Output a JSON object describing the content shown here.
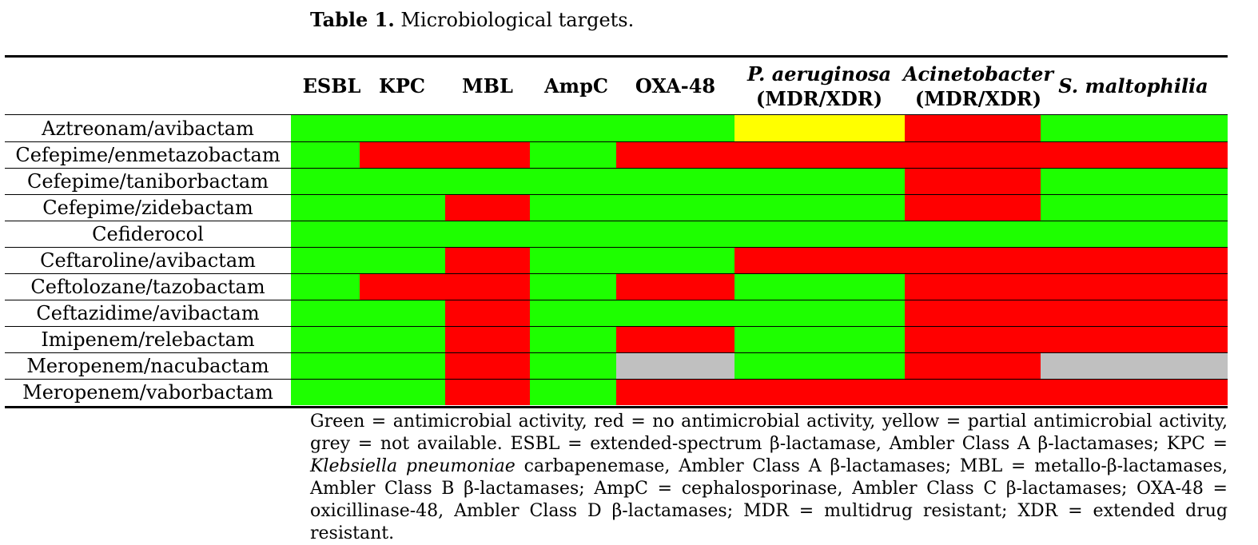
{
  "caption": {
    "label": "Table 1.",
    "text": " Microbiological targets."
  },
  "colors": {
    "green": "#1eff00",
    "red": "#ff0000",
    "yellow": "#ffff00",
    "grey": "#c0c0c0"
  },
  "columns": [
    {
      "line1": "ESBL",
      "line2": "",
      "italic": false
    },
    {
      "line1": "KPC",
      "line2": "",
      "italic": false
    },
    {
      "line1": "MBL",
      "line2": "",
      "italic": false
    },
    {
      "line1": "AmpC",
      "line2": "",
      "italic": false
    },
    {
      "line1": "OXA-48",
      "line2": "",
      "italic": false
    },
    {
      "line1": "P. aeruginosa",
      "line2": "(MDR/XDR)",
      "italic": true
    },
    {
      "line1": "Acinetobacter",
      "line2": "(MDR/XDR)",
      "italic": true
    },
    {
      "line1": "S. maltophilia",
      "line2": "",
      "italic": true
    }
  ],
  "rows": [
    {
      "drug": "Aztreonam/avibactam",
      "cells": [
        "green",
        "green",
        "green",
        "green",
        "green",
        "yellow",
        "red",
        "green"
      ]
    },
    {
      "drug": "Cefepime/enmetazobactam",
      "cells": [
        "green",
        "red",
        "red",
        "green",
        "red",
        "red",
        "red",
        "red"
      ]
    },
    {
      "drug": "Cefepime/taniborbactam",
      "cells": [
        "green",
        "green",
        "green",
        "green",
        "green",
        "green",
        "red",
        "green"
      ]
    },
    {
      "drug": "Cefepime/zidebactam",
      "cells": [
        "green",
        "green",
        "red",
        "green",
        "green",
        "green",
        "red",
        "green"
      ]
    },
    {
      "drug": "Cefiderocol",
      "cells": [
        "green",
        "green",
        "green",
        "green",
        "green",
        "green",
        "green",
        "green"
      ]
    },
    {
      "drug": "Ceftaroline/avibactam",
      "cells": [
        "green",
        "green",
        "red",
        "green",
        "green",
        "red",
        "red",
        "red"
      ]
    },
    {
      "drug": "Ceftolozane/tazobactam",
      "cells": [
        "green",
        "red",
        "red",
        "green",
        "red",
        "green",
        "red",
        "red"
      ]
    },
    {
      "drug": "Ceftazidime/avibactam",
      "cells": [
        "green",
        "green",
        "red",
        "green",
        "green",
        "green",
        "red",
        "red"
      ]
    },
    {
      "drug": "Imipenem/relebactam",
      "cells": [
        "green",
        "green",
        "red",
        "green",
        "red",
        "green",
        "red",
        "red"
      ]
    },
    {
      "drug": "Meropenem/nacubactam",
      "cells": [
        "green",
        "green",
        "red",
        "green",
        "grey",
        "green",
        "red",
        "grey"
      ]
    },
    {
      "drug": "Meropenem/vaborbactam",
      "cells": [
        "green",
        "green",
        "red",
        "green",
        "red",
        "red",
        "red",
        "red"
      ]
    }
  ],
  "footnote": {
    "part1": "Green = antimicrobial activity, red = no antimicrobial activity, yellow = partial antimicrobial activity, grey = not available. ESBL = extended-spectrum β-lactamase, Ambler Class A β-lactamases; KPC = ",
    "italic": "Klebsiella pneumoniae",
    "part2": " carbapenemase, Ambler Class A β-lactamases; MBL = metallo-β-lactamases, Ambler Class B β-lactamases; AmpC = cephalosporinase, Ambler Class C β-lactamases; OXA-48 = oxicillinase-48, Ambler Class D β-lactamases; MDR = multidrug resistant; XDR = extended drug resistant."
  }
}
